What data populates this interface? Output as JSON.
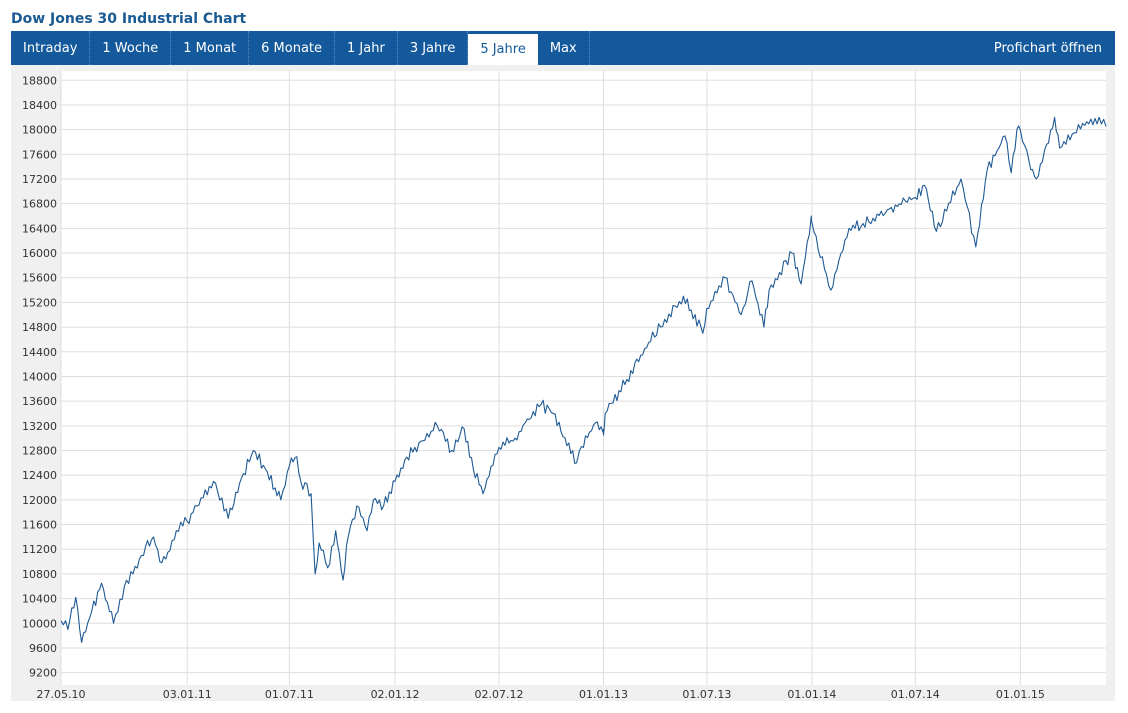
{
  "page": {
    "title": "Dow Jones 30 Industrial Chart"
  },
  "tabs": [
    {
      "label": "Intraday",
      "active": false
    },
    {
      "label": "1 Woche",
      "active": false
    },
    {
      "label": "1 Monat",
      "active": false
    },
    {
      "label": "6 Monate",
      "active": false
    },
    {
      "label": "1 Jahr",
      "active": false
    },
    {
      "label": "3 Jahre",
      "active": false
    },
    {
      "label": "5 Jahre",
      "active": true
    },
    {
      "label": "Max",
      "active": false
    }
  ],
  "profichart_label": "Profichart öffnen",
  "colors": {
    "accent": "#14599c",
    "line": "#1f5a94",
    "plot_bg": "#ffffff",
    "frame_bg": "#f0f0f0",
    "grid": "#dedede"
  },
  "chart_data": {
    "type": "line",
    "title": "",
    "xlabel": "",
    "ylabel": "",
    "grid": true,
    "legend": "none",
    "xlim": [
      "27.05.10",
      "31.05.15"
    ],
    "ylim": [
      9000,
      18950
    ],
    "y_ticks": [
      9200,
      9600,
      10000,
      10400,
      10800,
      11200,
      11600,
      12000,
      12400,
      12800,
      13200,
      13600,
      14000,
      14400,
      14800,
      15200,
      15600,
      16000,
      16400,
      16800,
      17200,
      17600,
      18000,
      18400,
      18800
    ],
    "x_ticks": [
      "27.05.10",
      "03.01.11",
      "01.07.11",
      "02.01.12",
      "02.07.12",
      "01.01.13",
      "01.07.13",
      "01.01.14",
      "01.07.14",
      "01.01.15"
    ],
    "series": [
      {
        "x": [
          "27.05.10",
          "08.06.10",
          "22.06.10",
          "02.07.10",
          "20.07.10",
          "06.08.10",
          "27.08.10",
          "15.09.10",
          "30.09.10",
          "15.10.10",
          "05.11.10",
          "16.11.10",
          "30.11.10",
          "15.12.10",
          "03.01.11",
          "20.01.11",
          "18.02.11",
          "16.03.11",
          "08.04.11",
          "29.04.11",
          "20.05.11",
          "16.06.11",
          "01.07.11",
          "14.07.11",
          "21.07.11",
          "08.08.11",
          "15.08.11",
          "22.08.11",
          "06.09.11",
          "20.09.11",
          "03.10.11",
          "12.10.11",
          "27.10.11",
          "14.11.11",
          "25.11.11",
          "13.12.11",
          "02.01.12",
          "19.01.12",
          "16.02.12",
          "16.03.12",
          "10.04.12",
          "02.05.12",
          "18.05.12",
          "04.06.12",
          "02.07.12",
          "30.07.12",
          "17.08.12",
          "14.09.12",
          "05.10.12",
          "15.11.12",
          "20.11.12",
          "18.12.12",
          "31.12.12",
          "01.01.13",
          "04.01.13",
          "11.02.13",
          "14.03.13",
          "11.04.13",
          "21.05.13",
          "24.06.13",
          "01.07.13",
          "02.08.13",
          "30.08.13",
          "18.09.13",
          "09.10.13",
          "18.10.13",
          "27.11.13",
          "13.12.13",
          "31.12.13",
          "01.01.14",
          "03.02.14",
          "07.03.14",
          "11.04.14",
          "13.05.14",
          "01.07.14",
          "17.07.14",
          "07.08.14",
          "19.09.14",
          "15.10.14",
          "04.11.14",
          "05.12.14",
          "16.12.14",
          "26.12.14",
          "01.01.15",
          "16.01.15",
          "29.01.15",
          "02.03.15",
          "11.03.15",
          "20.04.15",
          "19.05.15",
          "31.05.15"
        ],
        "values": [
          10040,
          9900,
          10420,
          9690,
          10200,
          10650,
          10000,
          10600,
          10800,
          11100,
          11400,
          11000,
          11150,
          11500,
          11650,
          11900,
          12300,
          11700,
          12350,
          12800,
          12500,
          12000,
          12550,
          12700,
          12300,
          12100,
          10800,
          11300,
          10900,
          11500,
          10700,
          11400,
          11900,
          11500,
          12000,
          11900,
          12300,
          12650,
          12950,
          13200,
          12800,
          13150,
          12500,
          12100,
          12850,
          13000,
          13250,
          13550,
          13400,
          12600,
          12800,
          13250,
          13100,
          13050,
          13400,
          13950,
          14450,
          14800,
          15300,
          14700,
          15100,
          15600,
          15000,
          15550,
          14800,
          15400,
          16000,
          15500,
          16600,
          16500,
          15400,
          16400,
          16500,
          16700,
          16900,
          17100,
          16350,
          17200,
          16100,
          17350,
          17900,
          17300,
          18000,
          18000,
          17500,
          17200,
          18200,
          17700,
          18100,
          18200,
          18050
        ]
      }
    ]
  }
}
